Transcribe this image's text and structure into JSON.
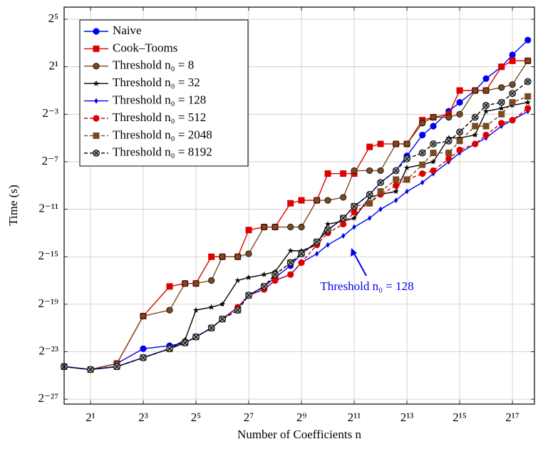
{
  "chart_data": {
    "type": "line",
    "xlabel": "Number of Coefficients n",
    "ylabel": "Time (s)",
    "log_base": 2,
    "xscale": "log",
    "yscale": "log",
    "grid": true,
    "legend": "upper left",
    "annotation": "Threshold n₀ = 128",
    "xlim": [
      1,
      234000
    ],
    "ylim": [
      5.6e-09,
      65
    ],
    "xticks": [
      {
        "value": 2,
        "label": "2¹"
      },
      {
        "value": 8,
        "label": "2³"
      },
      {
        "value": 32,
        "label": "2⁵"
      },
      {
        "value": 128,
        "label": "2⁷"
      },
      {
        "value": 512,
        "label": "2⁹"
      },
      {
        "value": 2048,
        "label": "2¹¹"
      },
      {
        "value": 8192,
        "label": "2¹³"
      },
      {
        "value": 32768,
        "label": "2¹⁵"
      },
      {
        "value": 131072,
        "label": "2¹⁷"
      }
    ],
    "yticks": [
      {
        "value": 32,
        "label": "2⁵"
      },
      {
        "value": 2,
        "label": "2¹"
      },
      {
        "value": 0.125,
        "label": "2⁻³"
      },
      {
        "value": 0.0078125,
        "label": "2⁻⁷"
      },
      {
        "value": 0.00048828125,
        "label": "2⁻¹¹"
      },
      {
        "value": 3.0517578125e-05,
        "label": "2⁻¹⁵"
      },
      {
        "value": 1.9073486328125e-06,
        "label": "2⁻¹⁹"
      },
      {
        "value": 1.1920928955078125e-07,
        "label": "2⁻²³"
      },
      {
        "value": 7.450580596923828e-09,
        "label": "2⁻²⁷"
      }
    ],
    "x": [
      1,
      2,
      4,
      8,
      16,
      24,
      32,
      48,
      64,
      96,
      128,
      192,
      256,
      384,
      512,
      768,
      1024,
      1536,
      2048,
      3072,
      4096,
      6144,
      8192,
      12288,
      16384,
      24576,
      32768,
      49152,
      65536,
      98304,
      131072,
      196608
    ],
    "series": [
      {
        "name": "Naive",
        "color": "#0000ee",
        "marker": "circle",
        "dash": "solid",
        "values": [
          5e-08,
          4.21e-08,
          5.96e-08,
          1.42e-07,
          1.69e-07,
          2e-07,
          2.83e-07,
          4.77e-07,
          8.02e-07,
          1.6e-06,
          3.21e-06,
          5.39e-06,
          9.07e-06,
          1.81e-05,
          3.63e-05,
          7.25e-05,
          0.000145,
          0.00029,
          0.00058,
          0.00116,
          0.00232,
          0.00465,
          0.011,
          0.0372,
          0.0625,
          0.149,
          0.25,
          0.5,
          1,
          2,
          4,
          9.51
        ]
      },
      {
        "name": "Cook–Tooms",
        "color": "#dd0000",
        "marker": "square",
        "dash": "solid",
        "values": [
          5e-08,
          4.21e-08,
          5.96e-08,
          9.54e-07,
          5.39e-06,
          6.41e-06,
          6.41e-06,
          3.05e-05,
          3.05e-05,
          3.05e-05,
          0.000145,
          0.000173,
          0.000173,
          0.000691,
          0.000821,
          0.000821,
          0.00391,
          0.00391,
          0.00391,
          0.0186,
          0.0221,
          0.0221,
          0.0221,
          0.0884,
          0.105,
          0.125,
          0.5,
          0.5,
          0.5,
          2,
          2.83,
          2.83
        ]
      },
      {
        "name": "Threshold n₀ = 8",
        "color": "#7a4a22",
        "marker": "circle",
        "dash": "solid",
        "values": [
          5e-08,
          4.21e-08,
          5.96e-08,
          9.54e-07,
          1.35e-06,
          6.41e-06,
          6.41e-06,
          7.63e-06,
          3.05e-05,
          3.05e-05,
          3.63e-05,
          0.000173,
          0.000173,
          0.000173,
          0.000173,
          0.000821,
          0.000821,
          0.000977,
          0.00465,
          0.00465,
          0.00465,
          0.0221,
          0.0221,
          0.0743,
          0.105,
          0.105,
          0.125,
          0.5,
          0.5,
          0.595,
          0.707,
          2.83
        ]
      },
      {
        "name": "Threshold n₀ = 32",
        "color": "#000000",
        "marker": "star",
        "dash": "solid",
        "values": [
          5e-08,
          4.21e-08,
          5e-08,
          8.43e-08,
          1.42e-07,
          2.38e-07,
          1.35e-06,
          1.6e-06,
          1.91e-06,
          7.63e-06,
          9.07e-06,
          1.08e-05,
          1.28e-05,
          4.32e-05,
          4.32e-05,
          6.1e-05,
          0.000205,
          0.000244,
          0.00029,
          0.000977,
          0.00116,
          0.00138,
          0.00552,
          0.00657,
          0.00781,
          0.0313,
          0.0313,
          0.0372,
          0.149,
          0.177,
          0.21,
          0.25
        ]
      },
      {
        "name": "Threshold n₀ = 128",
        "color": "#0000ee",
        "marker": "diamond",
        "dash": "solid",
        "values": [
          5e-08,
          4.21e-08,
          5e-08,
          8.43e-08,
          1.42e-07,
          2e-07,
          2.83e-07,
          4.77e-07,
          8.02e-07,
          1.6e-06,
          3.21e-06,
          4.53e-06,
          7.63e-06,
          1.08e-05,
          2.16e-05,
          3.63e-05,
          6.1e-05,
          0.000103,
          0.000173,
          0.00029,
          0.000488,
          0.000821,
          0.00138,
          0.00232,
          0.00391,
          0.00781,
          0.0131,
          0.0221,
          0.0313,
          0.0625,
          0.0884,
          0.149
        ]
      },
      {
        "name": "Threshold n₀ = 512",
        "color": "#dd0000",
        "marker": "circle",
        "dash": "dashed",
        "values": [
          5e-08,
          4.21e-08,
          5e-08,
          8.43e-08,
          1.42e-07,
          2e-07,
          2.83e-07,
          4.77e-07,
          8.02e-07,
          1.6e-06,
          3.21e-06,
          4.53e-06,
          7.63e-06,
          1.08e-05,
          2.16e-05,
          6.1e-05,
          0.000122,
          0.000205,
          0.00041,
          0.000691,
          0.00116,
          0.00195,
          0.00276,
          0.00391,
          0.00465,
          0.00929,
          0.0156,
          0.0221,
          0.0372,
          0.0743,
          0.0884,
          0.177
        ]
      },
      {
        "name": "Threshold n₀ = 2048",
        "color": "#7a4a22",
        "marker": "square",
        "dash": "dashed",
        "values": [
          5e-08,
          4.21e-08,
          5e-08,
          8.43e-08,
          1.42e-07,
          2e-07,
          2.83e-07,
          4.77e-07,
          8.02e-07,
          1.35e-06,
          3.21e-06,
          5.39e-06,
          1.08e-05,
          2.16e-05,
          3.63e-05,
          7.25e-05,
          0.000145,
          0.00029,
          0.00058,
          0.000691,
          0.00138,
          0.00276,
          0.00276,
          0.00657,
          0.0131,
          0.0131,
          0.0263,
          0.0625,
          0.0625,
          0.125,
          0.25,
          0.354
        ]
      },
      {
        "name": "Threshold n₀ = 8192",
        "color": "#000000",
        "marker": "xcircle",
        "dash": "dashed",
        "values": [
          5e-08,
          4.21e-08,
          5e-08,
          8.43e-08,
          1.42e-07,
          2e-07,
          2.83e-07,
          4.77e-07,
          8.02e-07,
          1.35e-06,
          3.21e-06,
          5.39e-06,
          1.08e-05,
          2.16e-05,
          3.63e-05,
          7.25e-05,
          0.000145,
          0.00029,
          0.00058,
          0.00116,
          0.00232,
          0.00465,
          0.00929,
          0.0131,
          0.0221,
          0.0263,
          0.0442,
          0.105,
          0.21,
          0.25,
          0.42,
          0.841
        ]
      }
    ]
  }
}
